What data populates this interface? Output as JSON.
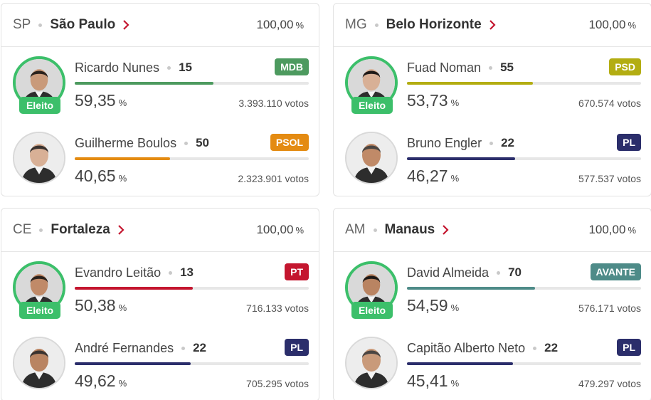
{
  "cards": [
    {
      "uf": "SP",
      "city": "São Paulo",
      "total": "100,00",
      "total_unit": "%",
      "candidates": [
        {
          "name": "Ricardo Nunes",
          "number": "15",
          "party": "MDB",
          "party_color": "#4d9a5f",
          "bar_fraction": 0.5935,
          "pct": "59,35",
          "pct_unit": "%",
          "votes": "3.393.110 votos",
          "elected": true,
          "elected_label": "Eleito"
        },
        {
          "name": "Guilherme Boulos",
          "number": "50",
          "party": "PSOL",
          "party_color": "#e48b12",
          "bar_fraction": 0.4065,
          "pct": "40,65",
          "pct_unit": "%",
          "votes": "2.323.901 votos",
          "elected": false
        }
      ]
    },
    {
      "uf": "MG",
      "city": "Belo Horizonte",
      "total": "100,00",
      "total_unit": "%",
      "candidates": [
        {
          "name": "Fuad Noman",
          "number": "55",
          "party": "PSD",
          "party_color": "#b3ad12",
          "bar_fraction": 0.5373,
          "pct": "53,73",
          "pct_unit": "%",
          "votes": "670.574 votos",
          "elected": true,
          "elected_label": "Eleito"
        },
        {
          "name": "Bruno Engler",
          "number": "22",
          "party": "PL",
          "party_color": "#2b2e6b",
          "bar_fraction": 0.4627,
          "pct": "46,27",
          "pct_unit": "%",
          "votes": "577.537 votos",
          "elected": false
        }
      ]
    },
    {
      "uf": "CE",
      "city": "Fortaleza",
      "total": "100,00",
      "total_unit": "%",
      "candidates": [
        {
          "name": "Evandro Leitão",
          "number": "13",
          "party": "PT",
          "party_color": "#c4162f",
          "bar_fraction": 0.5038,
          "pct": "50,38",
          "pct_unit": "%",
          "votes": "716.133 votos",
          "elected": true,
          "elected_label": "Eleito"
        },
        {
          "name": "André Fernandes",
          "number": "22",
          "party": "PL",
          "party_color": "#2b2e6b",
          "bar_fraction": 0.4962,
          "pct": "49,62",
          "pct_unit": "%",
          "votes": "705.295 votos",
          "elected": false
        }
      ]
    },
    {
      "uf": "AM",
      "city": "Manaus",
      "total": "100,00",
      "total_unit": "%",
      "candidates": [
        {
          "name": "David Almeida",
          "number": "70",
          "party": "AVANTE",
          "party_color": "#4e8b88",
          "bar_fraction": 0.5459,
          "pct": "54,59",
          "pct_unit": "%",
          "votes": "576.171 votos",
          "elected": true,
          "elected_label": "Eleito"
        },
        {
          "name": "Capitão Alberto Neto",
          "number": "22",
          "party": "PL",
          "party_color": "#2b2e6b",
          "bar_fraction": 0.4541,
          "pct": "45,41",
          "pct_unit": "%",
          "votes": "479.297 votos",
          "elected": false
        }
      ]
    }
  ],
  "colors": {
    "accent_chevron": "#c4162f",
    "elected_green": "#3cbf6a"
  },
  "icons": {
    "header_link": "chevron-right-icon",
    "photo": "candidate-photo"
  }
}
